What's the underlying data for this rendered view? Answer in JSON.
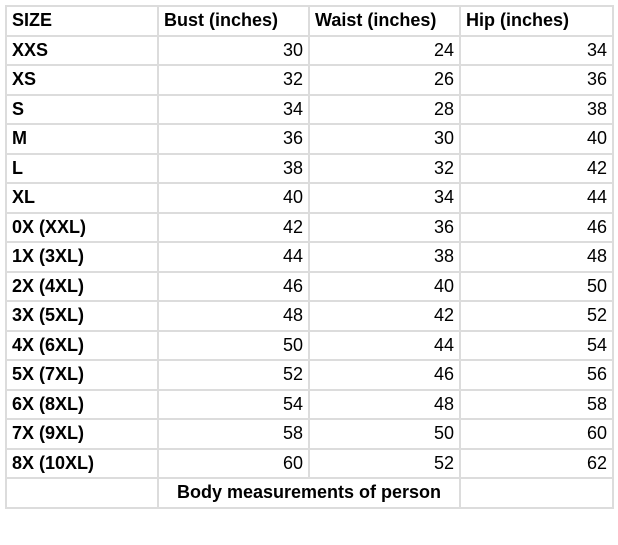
{
  "headers": [
    "SIZE",
    "Bust (inches)",
    "Waist (inches)",
    "Hip (inches)"
  ],
  "rows": [
    {
      "size": "XXS",
      "bust": "30",
      "waist": "24",
      "hip": "34"
    },
    {
      "size": "XS",
      "bust": "32",
      "waist": "26",
      "hip": "36"
    },
    {
      "size": "S",
      "bust": "34",
      "waist": "28",
      "hip": "38"
    },
    {
      "size": "M",
      "bust": "36",
      "waist": "30",
      "hip": "40"
    },
    {
      "size": "L",
      "bust": "38",
      "waist": "32",
      "hip": "42"
    },
    {
      "size": "XL",
      "bust": "40",
      "waist": "34",
      "hip": "44"
    },
    {
      "size": "0X (XXL)",
      "bust": "42",
      "waist": "36",
      "hip": "46"
    },
    {
      "size": "1X (3XL)",
      "bust": "44",
      "waist": "38",
      "hip": "48"
    },
    {
      "size": "2X (4XL)",
      "bust": "46",
      "waist": "40",
      "hip": "50"
    },
    {
      "size": "3X (5XL)",
      "bust": "48",
      "waist": "42",
      "hip": "52"
    },
    {
      "size": "4X (6XL)",
      "bust": "50",
      "waist": "44",
      "hip": "54"
    },
    {
      "size": "5X (7XL)",
      "bust": "52",
      "waist": "46",
      "hip": "56"
    },
    {
      "size": "6X (8XL)",
      "bust": "54",
      "waist": "48",
      "hip": "58"
    },
    {
      "size": "7X (9XL)",
      "bust": "58",
      "waist": "50",
      "hip": "60"
    },
    {
      "size": "8X (10XL)",
      "bust": "60",
      "waist": "52",
      "hip": "62"
    }
  ],
  "footer": "Body measurements of person",
  "border_color": "#dcdcdc"
}
